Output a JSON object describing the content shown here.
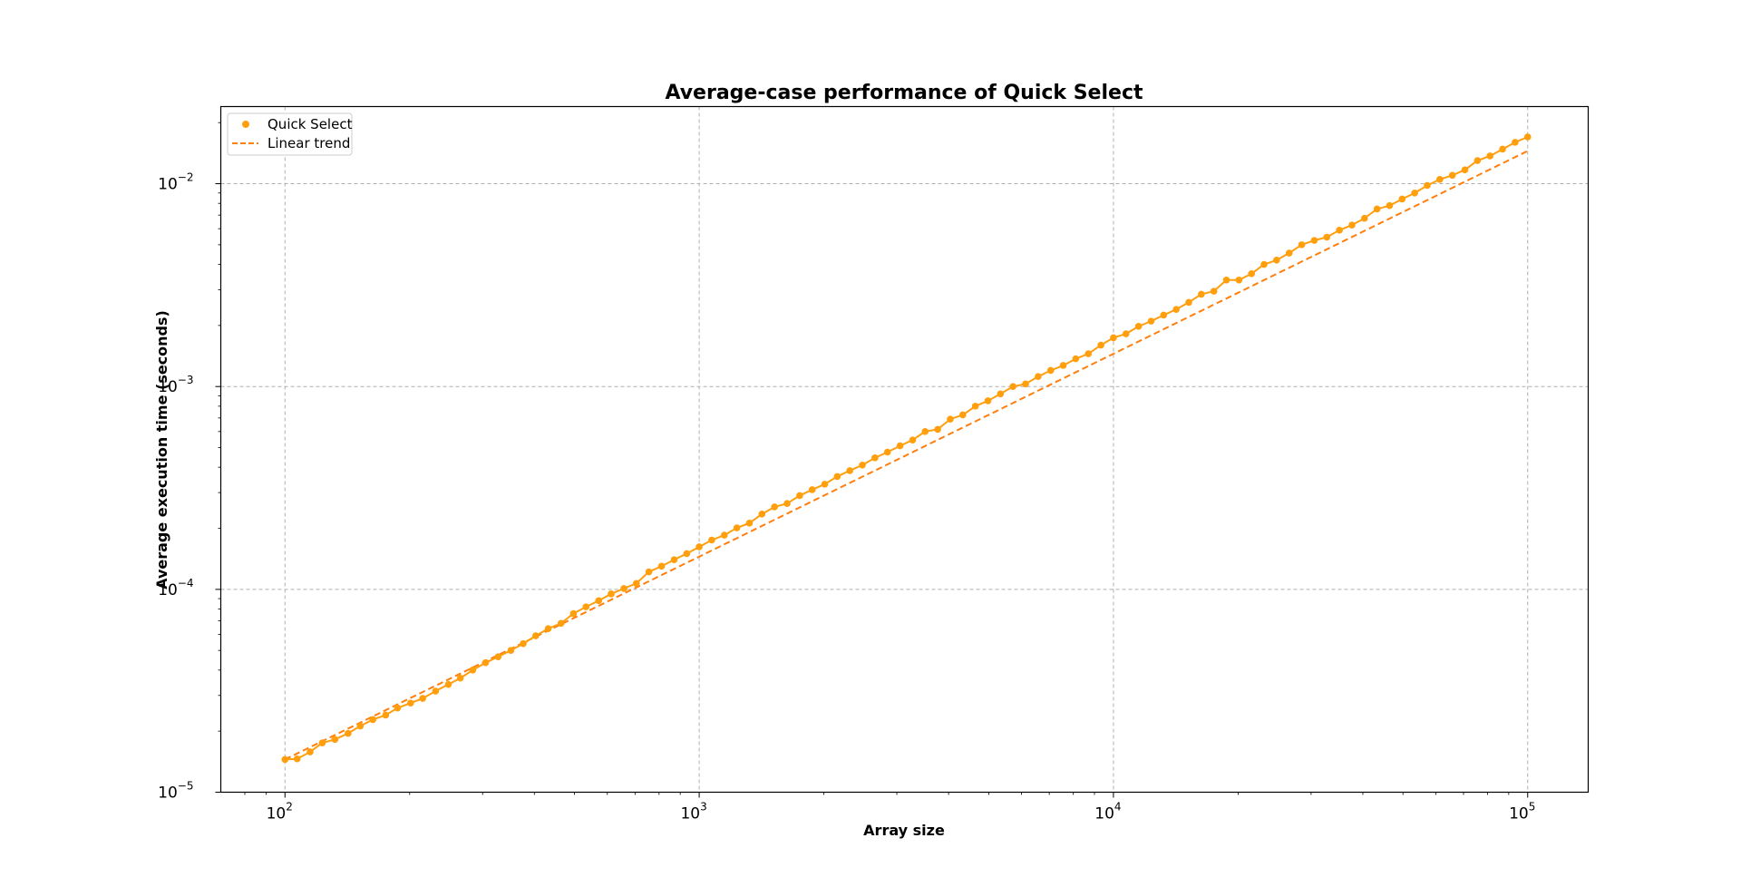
{
  "chart_data": {
    "type": "line",
    "title": "Average-case performance of Quick Select",
    "xlabel": "Array size",
    "ylabel": "Average execution time (seconds)",
    "xscale": "log",
    "yscale": "log",
    "xlim": [
      70,
      140000
    ],
    "ylim": [
      1e-05,
      0.024
    ],
    "grid": true,
    "legend_position": "upper left",
    "x_ticks": [
      {
        "value": 100,
        "base": "10",
        "exp": "2"
      },
      {
        "value": 1000,
        "base": "10",
        "exp": "3"
      },
      {
        "value": 10000,
        "base": "10",
        "exp": "4"
      },
      {
        "value": 100000,
        "base": "10",
        "exp": "5"
      }
    ],
    "y_ticks": [
      {
        "value": 1e-05,
        "base": "10",
        "exp": "−5"
      },
      {
        "value": 0.0001,
        "base": "10",
        "exp": "−4"
      },
      {
        "value": 0.001,
        "base": "10",
        "exp": "−3"
      },
      {
        "value": 0.01,
        "base": "10",
        "exp": "−2"
      }
    ],
    "series": [
      {
        "name": "Quick Select",
        "style": "line-with-markers",
        "color": "#ff9f0e",
        "x": [
          100,
          107,
          115,
          123,
          132,
          142,
          152,
          163,
          175,
          187,
          201,
          215,
          231,
          248,
          265,
          284,
          305,
          327,
          351,
          376,
          403,
          432,
          464,
          497,
          533,
          572,
          613,
          658,
          705,
          756,
          811,
          870,
          933,
          1000,
          1072,
          1150,
          1233,
          1322,
          1417,
          1520,
          1630,
          1748,
          1874,
          2009,
          2154,
          2310,
          2477,
          2656,
          2848,
          3054,
          3275,
          3511,
          3765,
          4037,
          4329,
          4642,
          4977,
          5337,
          5722,
          6136,
          6579,
          7055,
          7565,
          8111,
          8697,
          9326,
          10000,
          10723,
          11498,
          12328,
          13219,
          14175,
          15199,
          16298,
          17475,
          18738,
          20092,
          21544,
          23101,
          24771,
          26561,
          28480,
          30539,
          32745,
          35112,
          37649,
          40370,
          43288,
          46416,
          49770,
          53367,
          57224,
          61359,
          65793,
          70548,
          75646,
          81113,
          86975,
          93260,
          100000
        ],
        "y": [
          1.45e-05,
          1.46e-05,
          1.58e-05,
          1.75e-05,
          1.82e-05,
          1.95e-05,
          2.12e-05,
          2.28e-05,
          2.4e-05,
          2.6e-05,
          2.75e-05,
          2.9e-05,
          3.15e-05,
          3.4e-05,
          3.65e-05,
          4e-05,
          4.35e-05,
          4.65e-05,
          5e-05,
          5.4e-05,
          5.9e-05,
          6.4e-05,
          6.8e-05,
          7.6e-05,
          8.2e-05,
          8.8e-05,
          9.5e-05,
          0.000101,
          0.000107,
          0.000122,
          0.00013,
          0.00014,
          0.00015,
          0.000162,
          0.000175,
          0.000185,
          0.000201,
          0.000212,
          0.000235,
          0.000255,
          0.000265,
          0.00029,
          0.00031,
          0.00033,
          0.00036,
          0.000385,
          0.00041,
          0.000445,
          0.000475,
          0.00051,
          0.000545,
          0.0006,
          0.000615,
          0.00069,
          0.000725,
          0.0008,
          0.00085,
          0.00092,
          0.001,
          0.00103,
          0.00112,
          0.0012,
          0.00127,
          0.00137,
          0.00145,
          0.0016,
          0.00174,
          0.00182,
          0.00198,
          0.0021,
          0.00225,
          0.0024,
          0.0026,
          0.00285,
          0.00295,
          0.00335,
          0.00335,
          0.0036,
          0.004,
          0.0042,
          0.00455,
          0.005,
          0.00525,
          0.00545,
          0.0059,
          0.00625,
          0.00675,
          0.0075,
          0.0078,
          0.0084,
          0.009,
          0.0098,
          0.0105,
          0.011,
          0.0117,
          0.013,
          0.0137,
          0.0148,
          0.016,
          0.017
        ]
      },
      {
        "name": "Linear trend",
        "style": "dashed",
        "color": "#ff7f0e",
        "x": [
          100,
          100000
        ],
        "y": [
          1.45e-05,
          0.0145
        ]
      }
    ]
  }
}
